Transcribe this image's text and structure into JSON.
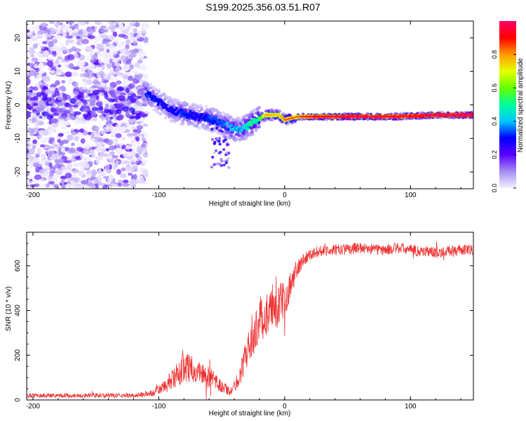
{
  "title": "S199.2025.356.03.51.R07",
  "chart_data": [
    {
      "type": "heatmap",
      "xlabel": "Height of straight line (km)",
      "ylabel": "Frequency (Hz)",
      "xlim": [
        -205,
        150
      ],
      "ylim": [
        -25,
        25
      ],
      "xticks": [
        -200,
        -100,
        0,
        100
      ],
      "yticks": [
        -20,
        -10,
        0,
        10,
        20
      ],
      "colorbar": {
        "label": "Normalized spectral amplitude",
        "range": [
          0,
          1
        ],
        "ticks": [
          "0.0",
          "0.2",
          "0.4",
          "0.6",
          "0.8"
        ],
        "tick_values": [
          0.0,
          0.2,
          0.4,
          0.6,
          0.8
        ],
        "colormap": [
          "#f4f0ff",
          "#a48cf4",
          "#5a00ff",
          "#0000ff",
          "#00c8ff",
          "#00ff9a",
          "#66ff00",
          "#e6ff00",
          "#ff9900",
          "#ff0000",
          "#ff0066"
        ]
      },
      "noise_region": {
        "x_range": [
          -205,
          -110
        ],
        "freq_range": [
          -25,
          25
        ],
        "amplitude_range": [
          0.0,
          0.2
        ]
      },
      "ridge": [
        {
          "x": -110,
          "freq": 3.5,
          "amp": 0.35
        },
        {
          "x": -100,
          "freq": 1.0,
          "amp": 0.3
        },
        {
          "x": -90,
          "freq": -1.5,
          "amp": 0.3
        },
        {
          "x": -80,
          "freq": -2.5,
          "amp": 0.35
        },
        {
          "x": -70,
          "freq": -3.5,
          "amp": 0.3
        },
        {
          "x": -60,
          "freq": -4.0,
          "amp": 0.35
        },
        {
          "x": -50,
          "freq": -5.5,
          "amp": 0.35
        },
        {
          "x": -42,
          "freq": -7.0,
          "amp": 0.45
        },
        {
          "x": -35,
          "freq": -7.5,
          "amp": 0.4
        },
        {
          "x": -28,
          "freq": -6.0,
          "amp": 0.55
        },
        {
          "x": -22,
          "freq": -4.5,
          "amp": 0.5
        },
        {
          "x": -15,
          "freq": -3.0,
          "amp": 0.75
        },
        {
          "x": -5,
          "freq": -3.0,
          "amp": 0.7
        },
        {
          "x": 0,
          "freq": -4.5,
          "amp": 0.8
        },
        {
          "x": 10,
          "freq": -3.5,
          "amp": 0.8
        },
        {
          "x": 30,
          "freq": -3.5,
          "amp": 0.9
        },
        {
          "x": 60,
          "freq": -3.5,
          "amp": 0.95
        },
        {
          "x": 90,
          "freq": -3.5,
          "amp": 0.9
        },
        {
          "x": 120,
          "freq": -3.0,
          "amp": 0.95
        },
        {
          "x": 150,
          "freq": -3.0,
          "amp": 0.95
        }
      ]
    },
    {
      "type": "line",
      "xlabel": "Height of straight line (km)",
      "ylabel": "SNR (10 * v/v)",
      "xlim": [
        -205,
        150
      ],
      "ylim": [
        0,
        750
      ],
      "xticks": [
        -200,
        -100,
        0,
        100
      ],
      "yticks": [
        0,
        200,
        400,
        600
      ],
      "color": "#ee3333",
      "series": [
        {
          "name": "SNR",
          "x": [
            -205,
            -180,
            -150,
            -120,
            -105,
            -95,
            -85,
            -80,
            -75,
            -70,
            -60,
            -50,
            -42,
            -35,
            -30,
            -25,
            -20,
            -15,
            -10,
            -5,
            0,
            5,
            10,
            15,
            20,
            25,
            30,
            40,
            50,
            60,
            70,
            80,
            90,
            100,
            110,
            120,
            130,
            140,
            150
          ],
          "y": [
            20,
            20,
            20,
            20,
            30,
            60,
            110,
            160,
            140,
            130,
            100,
            60,
            35,
            120,
            220,
            270,
            360,
            380,
            400,
            420,
            450,
            520,
            580,
            630,
            650,
            660,
            670,
            670,
            675,
            680,
            675,
            670,
            680,
            670,
            665,
            660,
            665,
            670,
            670
          ],
          "noise": [
            10,
            10,
            10,
            10,
            15,
            30,
            60,
            80,
            60,
            55,
            50,
            30,
            20,
            50,
            70,
            80,
            100,
            100,
            100,
            100,
            80,
            60,
            40,
            30,
            25,
            25,
            25,
            25,
            25,
            25,
            25,
            25,
            25,
            25,
            25,
            25,
            25,
            25,
            25
          ]
        }
      ]
    }
  ]
}
